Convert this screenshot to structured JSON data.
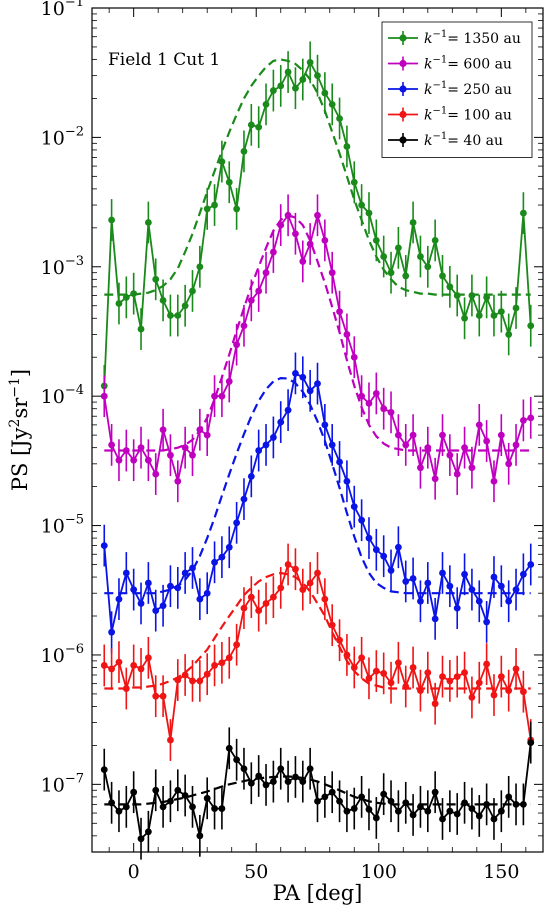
{
  "chart_data": {
    "type": "line",
    "title": "",
    "annotation": "Field 1 Cut 1",
    "xlabel": "PA [deg]",
    "ylabel": "PS [Jy²sr⁻¹]",
    "ylabel_parts": {
      "base": "PS [Jy",
      "sup1": "2",
      "mid": "sr",
      "sup2": "−1",
      "end": "]"
    },
    "xlim": [
      -17,
      167
    ],
    "ylim": [
      3e-08,
      0.1
    ],
    "yscale": "log",
    "x_ticks": [
      0,
      50,
      100,
      150
    ],
    "x_tick_labels": [
      "0",
      "50",
      "100",
      "150"
    ],
    "y_ticks": [
      1e-07,
      1e-06,
      1e-05,
      0.0001,
      0.001,
      0.01,
      0.1
    ],
    "y_tick_labels": [
      {
        "base": "10",
        "exp": "−7"
      },
      {
        "base": "10",
        "exp": "−6"
      },
      {
        "base": "10",
        "exp": "−5"
      },
      {
        "base": "10",
        "exp": "−4"
      },
      {
        "base": "10",
        "exp": "−3"
      },
      {
        "base": "10",
        "exp": "−2"
      },
      {
        "base": "10",
        "exp": "−1"
      }
    ],
    "legend_position": "top-right",
    "x": [
      -12,
      -9,
      -6,
      -3,
      0,
      3,
      6,
      9,
      12,
      15,
      18,
      21,
      24,
      27,
      30,
      33,
      36,
      39,
      42,
      45,
      48,
      51,
      54,
      57,
      60,
      63,
      66,
      69,
      72,
      75,
      78,
      81,
      84,
      87,
      90,
      93,
      96,
      99,
      102,
      105,
      108,
      111,
      114,
      117,
      120,
      123,
      126,
      129,
      132,
      135,
      138,
      141,
      144,
      147,
      150,
      153,
      156,
      159,
      162
    ],
    "series": [
      {
        "name": "k⁻¹ = 1350 au",
        "legend_prefix": "k",
        "legend_exp": "−1",
        "legend_suffix": "= 1350 au",
        "color": "#1a8a1a",
        "values": [
          0.00012,
          0.0023,
          0.00052,
          0.00058,
          0.00062,
          0.00033,
          0.0022,
          0.0008,
          0.00055,
          0.00042,
          0.00042,
          0.0005,
          0.00065,
          0.001,
          0.0028,
          0.003,
          0.0065,
          0.0045,
          0.0028,
          0.0078,
          0.0125,
          0.012,
          0.018,
          0.023,
          0.025,
          0.032,
          0.024,
          0.028,
          0.038,
          0.03,
          0.022,
          0.018,
          0.014,
          0.0085,
          0.0045,
          0.003,
          0.0026,
          0.0016,
          0.0012,
          0.0009,
          0.0014,
          0.00085,
          0.0022,
          0.0012,
          0.001,
          0.0016,
          0.00085,
          0.0007,
          0.0006,
          0.0004,
          0.0006,
          0.00042,
          0.00058,
          0.00042,
          0.00045,
          0.0003,
          0.00048,
          0.0026,
          0.00035
        ],
        "model": [
          0.00061,
          0.00061,
          0.00061,
          0.00061,
          0.00061,
          0.00062,
          0.00063,
          0.00066,
          0.00071,
          0.0008,
          0.00097,
          0.0013,
          0.0018,
          0.0026,
          0.0038,
          0.0055,
          0.0078,
          0.011,
          0.015,
          0.02,
          0.025,
          0.03,
          0.035,
          0.039,
          0.04,
          0.039,
          0.037,
          0.033,
          0.028,
          0.022,
          0.016,
          0.011,
          0.0075,
          0.005,
          0.0033,
          0.0023,
          0.0016,
          0.0012,
          0.00095,
          0.0008,
          0.0007,
          0.00066,
          0.00064,
          0.00062,
          0.00062,
          0.00061,
          0.00061,
          0.00061,
          0.00061,
          0.00061,
          0.00061,
          0.00061,
          0.00061,
          0.00061,
          0.00061,
          0.00061,
          0.00061,
          0.00061,
          0.00061
        ]
      },
      {
        "name": "k⁻¹ = 600 au",
        "legend_prefix": "k",
        "legend_exp": "−1",
        "legend_suffix": "= 600 au",
        "color": "#bf00bf",
        "values": [
          0.0001,
          4.2e-05,
          3.2e-05,
          3.8e-05,
          3.2e-05,
          4e-05,
          3.2e-05,
          2.5e-05,
          5.5e-05,
          3.5e-05,
          2.2e-05,
          4e-05,
          3.5e-05,
          5.5e-05,
          5e-05,
          0.0001,
          0.0001,
          0.00013,
          0.00025,
          0.00035,
          0.00055,
          0.00065,
          0.0009,
          0.0013,
          0.0021,
          0.0025,
          0.0018,
          0.0011,
          0.0015,
          0.0025,
          0.0016,
          0.0009,
          0.00045,
          0.0003,
          0.0002,
          0.0001,
          8.8e-05,
          0.000105,
          8e-05,
          7.5e-05,
          5e-05,
          4.2e-05,
          5e-05,
          2.8e-05,
          4e-05,
          2.3e-05,
          5e-05,
          3.5e-05,
          2.5e-05,
          4e-05,
          2.8e-05,
          6e-05,
          4.5e-05,
          2.2e-05,
          5e-05,
          3e-05,
          4.2e-05,
          6.5e-05,
          6.8e-05
        ],
        "model": [
          3.8e-05,
          3.8e-05,
          3.8e-05,
          3.8e-05,
          3.8e-05,
          3.8e-05,
          3.8e-05,
          3.8e-05,
          3.8e-05,
          3.9e-05,
          4e-05,
          4.2e-05,
          4.6e-05,
          5.4e-05,
          6.8e-05,
          9.5e-05,
          0.00014,
          0.00021,
          0.00032,
          0.00048,
          0.00071,
          0.001,
          0.0014,
          0.0019,
          0.0023,
          0.0025,
          0.0024,
          0.0021,
          0.0016,
          0.0011,
          0.00075,
          0.00049,
          0.00031,
          0.00019,
          0.00012,
          8.2e-05,
          6e-05,
          4.9e-05,
          4.3e-05,
          4e-05,
          3.9e-05,
          3.8e-05,
          3.8e-05,
          3.8e-05,
          3.8e-05,
          3.8e-05,
          3.8e-05,
          3.8e-05,
          3.8e-05,
          3.8e-05,
          3.8e-05,
          3.8e-05,
          3.8e-05,
          3.8e-05,
          3.8e-05,
          3.8e-05,
          3.8e-05,
          3.8e-05,
          3.8e-05
        ]
      },
      {
        "name": "k⁻¹ = 250 au",
        "legend_prefix": "k",
        "legend_exp": "−1",
        "legend_suffix": "= 250 au",
        "color": "#0a14e6",
        "values": [
          7e-06,
          1.5e-06,
          2.7e-06,
          4.3e-06,
          3.2e-06,
          2.5e-06,
          3.6e-06,
          2.2e-06,
          2.4e-06,
          3.4e-06,
          3.3e-06,
          4.3e-06,
          4.7e-06,
          2.7e-06,
          3e-06,
          5.2e-06,
          5.7e-06,
          6.8e-06,
          1.05e-05,
          1.6e-05,
          2.4e-05,
          3.8e-05,
          4.2e-05,
          4.8e-05,
          6.3e-05,
          7.8e-05,
          0.00015,
          0.00014,
          0.00011,
          0.000125,
          6e-05,
          4.2e-05,
          3.1e-05,
          2.2e-05,
          1.4e-05,
          1.1e-05,
          8e-06,
          6.5e-06,
          5.8e-06,
          4.5e-06,
          6.8e-06,
          3.7e-06,
          3.9e-06,
          2.6e-06,
          3.6e-06,
          1.9e-06,
          4.3e-06,
          3.4e-06,
          2.3e-06,
          4.2e-06,
          3.2e-06,
          2.6e-06,
          1.8e-06,
          4e-06,
          3.4e-06,
          2.6e-06,
          3.2e-06,
          4.2e-06,
          5e-06
        ],
        "model": [
          3e-06,
          3e-06,
          3e-06,
          3e-06,
          3e-06,
          3e-06,
          3e-06,
          3e-06,
          3.1e-06,
          3.2e-06,
          3.4e-06,
          3.8e-06,
          4.5e-06,
          5.8e-06,
          8e-06,
          1.15e-05,
          1.7e-05,
          2.5e-05,
          3.6e-05,
          5.1e-05,
          7e-05,
          9.2e-05,
          0.000113,
          0.00013,
          0.000138,
          0.000137,
          0.000126,
          0.000108,
          8.6e-05,
          6.4e-05,
          4.5e-05,
          3e-05,
          1.95e-05,
          1.25e-05,
          8.2e-06,
          5.7e-06,
          4.3e-06,
          3.6e-06,
          3.3e-06,
          3.1e-06,
          3.05e-06,
          3e-06,
          3e-06,
          3e-06,
          3e-06,
          3e-06,
          3e-06,
          3e-06,
          3e-06,
          3e-06,
          3e-06,
          3e-06,
          3e-06,
          3e-06,
          3e-06,
          3e-06,
          3e-06,
          3e-06,
          3e-06
        ]
      },
      {
        "name": "k⁻¹ = 100 au",
        "legend_prefix": "k",
        "legend_exp": "−1",
        "legend_suffix": "= 100 au",
        "color": "#f01414",
        "values": [
          8.3e-07,
          7.8e-07,
          8.8e-07,
          5.5e-07,
          8.3e-07,
          7.8e-07,
          9.5e-07,
          4.8e-07,
          4.8e-07,
          2.2e-07,
          6.4e-07,
          7e-07,
          6.3e-07,
          6.3e-07,
          7.1e-07,
          8.3e-07,
          8.7e-07,
          9.5e-07,
          1.2e-06,
          2.3e-06,
          2.8e-06,
          2.2e-06,
          2.5e-06,
          2.8e-06,
          3.3e-06,
          5e-06,
          4.6e-06,
          3.2e-06,
          3.6e-06,
          4.3e-06,
          2.7e-06,
          1.7e-06,
          1.3e-06,
          1e-06,
          8e-07,
          9.5e-07,
          6.6e-07,
          7.5e-07,
          7.2e-07,
          6.1e-07,
          8.7e-07,
          5.7e-07,
          8e-07,
          5.3e-07,
          7.3e-07,
          4.2e-07,
          6.8e-07,
          6.3e-07,
          6.8e-07,
          7.3e-07,
          4.7e-07,
          6.1e-07,
          8.5e-07,
          4.9e-07,
          6.8e-07,
          5.3e-07,
          7.8e-07,
          5.2e-07,
          2.2e-07
        ],
        "model": [
          5.5e-07,
          5.5e-07,
          5.5e-07,
          5.5e-07,
          5.6e-07,
          5.6e-07,
          5.7e-07,
          5.8e-07,
          6e-07,
          6.3e-07,
          6.7e-07,
          7.3e-07,
          8.2e-07,
          9.5e-07,
          1.1e-06,
          1.35e-06,
          1.65e-06,
          2e-06,
          2.4e-06,
          2.9e-06,
          3.3e-06,
          3.7e-06,
          4e-06,
          4.2e-06,
          4.3e-06,
          4.2e-06,
          4e-06,
          3.6e-06,
          3.1e-06,
          2.5e-06,
          2e-06,
          1.5e-06,
          1.15e-06,
          9e-07,
          7.5e-07,
          6.6e-07,
          6e-07,
          5.8e-07,
          5.6e-07,
          5.5e-07,
          5.5e-07,
          5.5e-07,
          5.5e-07,
          5.5e-07,
          5.5e-07,
          5.5e-07,
          5.5e-07,
          5.5e-07,
          5.5e-07,
          5.5e-07,
          5.5e-07,
          5.5e-07,
          5.5e-07,
          5.5e-07,
          5.5e-07,
          5.5e-07,
          5.5e-07,
          5.5e-07,
          5.5e-07
        ]
      },
      {
        "name": "k⁻¹ = 40 au",
        "legend_prefix": "k",
        "legend_exp": "−1",
        "legend_suffix": "= 40 au",
        "color": "#000000",
        "values": [
          1.3e-07,
          7.2e-08,
          6.2e-08,
          6.7e-08,
          8.7e-08,
          3.8e-08,
          4.3e-08,
          9e-08,
          6.7e-08,
          7.4e-08,
          9e-08,
          8.2e-08,
          6.7e-08,
          4e-08,
          7.8e-08,
          6.5e-08,
          6.5e-08,
          1.9e-07,
          1.55e-07,
          1.32e-07,
          1.02e-07,
          1.16e-07,
          9.9e-08,
          1.05e-07,
          1.32e-07,
          1.05e-07,
          1.14e-07,
          1.05e-07,
          1.32e-07,
          7.4e-08,
          8e-08,
          8.7e-08,
          7.4e-08,
          6.2e-08,
          6.5e-08,
          8e-08,
          6.4e-08,
          5.5e-08,
          8.4e-08,
          7.4e-08,
          6.2e-08,
          7.2e-08,
          5.8e-08,
          6.7e-08,
          6.2e-08,
          8.7e-08,
          5.4e-08,
          6.2e-08,
          5.9e-08,
          7.2e-08,
          6.5e-08,
          5.7e-08,
          7e-08,
          5.4e-08,
          6.2e-08,
          8e-08,
          7e-08,
          7e-08,
          2.1e-07
        ],
        "model": [
          7e-08,
          7e-08,
          7e-08,
          7e-08,
          7e-08,
          7e-08,
          7.1e-08,
          7.2e-08,
          7.3e-08,
          7.5e-08,
          7.7e-08,
          7.9e-08,
          8.2e-08,
          8.5e-08,
          8.8e-08,
          9.2e-08,
          9.6e-08,
          1e-07,
          1.03e-07,
          1.06e-07,
          1.09e-07,
          1.11e-07,
          1.13e-07,
          1.14e-07,
          1.15e-07,
          1.15e-07,
          1.14e-07,
          1.12e-07,
          1.09e-07,
          1.05e-07,
          1e-07,
          9.5e-08,
          9e-08,
          8.5e-08,
          8e-08,
          7.7e-08,
          7.4e-08,
          7.2e-08,
          7.1e-08,
          7e-08,
          7e-08,
          7e-08,
          7e-08,
          7e-08,
          7e-08,
          7e-08,
          7e-08,
          7e-08,
          7e-08,
          7e-08,
          7e-08,
          7e-08,
          7e-08,
          7e-08,
          7e-08,
          7e-08,
          7e-08,
          7e-08,
          7e-08
        ]
      }
    ]
  }
}
